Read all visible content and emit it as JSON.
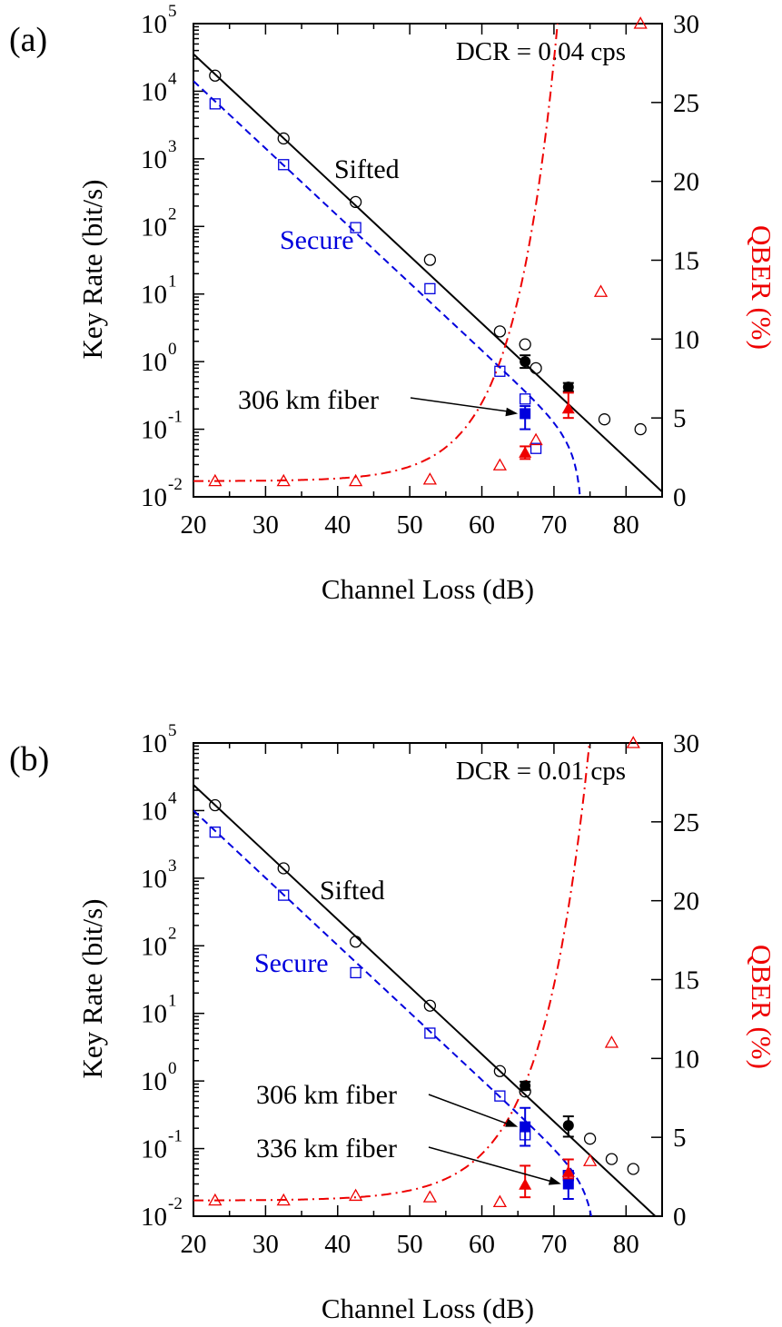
{
  "chart_data": [
    {
      "type": "scatter",
      "panel_label": "(a)",
      "annotation": "DCR = 0.04 cps",
      "xlabel": "Channel Loss (dB)",
      "ylabel_left": "Key Rate (bit/s)",
      "ylabel_right": "QBER (%)",
      "xlim": [
        20,
        85
      ],
      "ylim_left": [
        0.01,
        100000
      ],
      "yscale_left": "log",
      "ylim_right": [
        0,
        30
      ],
      "x_ticks": [
        20,
        30,
        40,
        50,
        60,
        70,
        80
      ],
      "y_left_tick_bases": [
        "10",
        "10",
        "10",
        "10",
        "10",
        "10",
        "10",
        "10"
      ],
      "y_left_tick_exps": [
        "-2",
        "-1",
        "0",
        "1",
        "2",
        "3",
        "4",
        "5"
      ],
      "y_right_ticks": [
        0,
        5,
        10,
        15,
        20,
        25,
        30
      ],
      "series_labels": {
        "sifted": "Sifted",
        "secure": "Secure"
      },
      "fiber_labels": [
        {
          "text": "306 km fiber",
          "x": 66,
          "y": 0.17
        }
      ],
      "colors": {
        "sifted": "#000000",
        "secure": "#0000dd",
        "qber": "#ee0000"
      },
      "sifted_points": [
        {
          "x": 23,
          "y": 17000
        },
        {
          "x": 32.5,
          "y": 2000
        },
        {
          "x": 42.5,
          "y": 230
        },
        {
          "x": 52.8,
          "y": 32
        },
        {
          "x": 62.5,
          "y": 2.8
        },
        {
          "x": 66,
          "y": 1.8
        },
        {
          "x": 67.5,
          "y": 0.8
        },
        {
          "x": 77,
          "y": 0.14
        },
        {
          "x": 82,
          "y": 0.1
        }
      ],
      "sifted_fiber_points": [
        {
          "x": 66,
          "y": 1.0,
          "err": 0.08
        },
        {
          "x": 72,
          "y": 0.42,
          "err": 0.05
        }
      ],
      "secure_points": [
        {
          "x": 23,
          "y": 6500
        },
        {
          "x": 32.5,
          "y": 820
        },
        {
          "x": 42.5,
          "y": 96
        },
        {
          "x": 52.8,
          "y": 12
        },
        {
          "x": 62.5,
          "y": 0.72
        },
        {
          "x": 66,
          "y": 0.28
        },
        {
          "x": 67.5,
          "y": 0.052
        }
      ],
      "secure_fiber_points": [
        {
          "x": 66,
          "y": 0.17,
          "lo": 0.1,
          "hi": 0.22
        }
      ],
      "qber_points": [
        {
          "x": 23,
          "y": 1.0
        },
        {
          "x": 32.5,
          "y": 1.0
        },
        {
          "x": 42.5,
          "y": 1.0
        },
        {
          "x": 52.8,
          "y": 1.1
        },
        {
          "x": 62.5,
          "y": 2.0
        },
        {
          "x": 67.5,
          "y": 3.6
        },
        {
          "x": 76.5,
          "y": 13
        },
        {
          "x": 82,
          "y": 30
        }
      ],
      "qber_fiber_points": [
        {
          "x": 66,
          "y": 2.8,
          "lo": 2.4,
          "hi": 3.2
        },
        {
          "x": 72,
          "y": 5.6,
          "lo": 5.0,
          "hi": 6.6
        }
      ],
      "sifted_line": {
        "x0": 20,
        "log_y0": 4.55,
        "slope": -0.0996
      },
      "secure_line": {
        "x0": 20,
        "log_y0": 4.15,
        "slope": -0.0996
      },
      "secure_cutoff": 74,
      "qber_curve": {
        "base": 1.0,
        "amp": 0.006,
        "rate": 0.168,
        "x_ref": 20
      }
    },
    {
      "type": "scatter",
      "panel_label": "(b)",
      "annotation": "DCR = 0.01 cps",
      "xlabel": "Channel Loss (dB)",
      "ylabel_left": "Key Rate (bit/s)",
      "ylabel_right": "QBER (%)",
      "xlim": [
        20,
        85
      ],
      "ylim_left": [
        0.01,
        100000
      ],
      "yscale_left": "log",
      "ylim_right": [
        0,
        30
      ],
      "x_ticks": [
        20,
        30,
        40,
        50,
        60,
        70,
        80
      ],
      "y_left_tick_bases": [
        "10",
        "10",
        "10",
        "10",
        "10",
        "10",
        "10",
        "10"
      ],
      "y_left_tick_exps": [
        "-2",
        "-1",
        "0",
        "1",
        "2",
        "3",
        "4",
        "5"
      ],
      "y_right_ticks": [
        0,
        5,
        10,
        15,
        20,
        25,
        30
      ],
      "series_labels": {
        "sifted": "Sifted",
        "secure": "Secure"
      },
      "fiber_labels": [
        {
          "text": "306 km fiber",
          "x": 66,
          "y": 0.21
        },
        {
          "text": "336 km fiber",
          "x": 72,
          "y": 0.03
        }
      ],
      "colors": {
        "sifted": "#000000",
        "secure": "#0000dd",
        "qber": "#ee0000"
      },
      "sifted_points": [
        {
          "x": 23,
          "y": 12000
        },
        {
          "x": 32.5,
          "y": 1400
        },
        {
          "x": 42.5,
          "y": 115
        },
        {
          "x": 52.8,
          "y": 13
        },
        {
          "x": 62.5,
          "y": 1.4
        },
        {
          "x": 66,
          "y": 0.7
        },
        {
          "x": 75,
          "y": 0.14
        },
        {
          "x": 78,
          "y": 0.07
        },
        {
          "x": 81,
          "y": 0.05
        }
      ],
      "sifted_fiber_points": [
        {
          "x": 66,
          "y": 0.85,
          "err": 0.05
        },
        {
          "x": 72,
          "y": 0.22,
          "lo": 0.15,
          "hi": 0.3
        }
      ],
      "secure_points": [
        {
          "x": 23,
          "y": 4800
        },
        {
          "x": 32.5,
          "y": 560
        },
        {
          "x": 42.5,
          "y": 40
        },
        {
          "x": 52.8,
          "y": 5.1
        },
        {
          "x": 62.5,
          "y": 0.6
        },
        {
          "x": 66,
          "y": 0.16
        },
        {
          "x": 72,
          "y": 0.04
        }
      ],
      "secure_fiber_points": [
        {
          "x": 66,
          "y": 0.21,
          "lo": 0.11,
          "hi": 0.4
        },
        {
          "x": 72,
          "y": 0.03,
          "lo": 0.018,
          "hi": 0.045
        }
      ],
      "qber_points": [
        {
          "x": 23,
          "y": 1.0
        },
        {
          "x": 32.5,
          "y": 1.0
        },
        {
          "x": 42.5,
          "y": 1.3
        },
        {
          "x": 52.8,
          "y": 1.2
        },
        {
          "x": 62.5,
          "y": 0.9
        },
        {
          "x": 75,
          "y": 3.5
        },
        {
          "x": 78,
          "y": 11
        },
        {
          "x": 81,
          "y": 30
        }
      ],
      "qber_fiber_points": [
        {
          "x": 66,
          "y": 2.0,
          "lo": 1.2,
          "hi": 3.2
        },
        {
          "x": 72,
          "y": 2.8,
          "lo": 2.4,
          "hi": 3.6
        }
      ],
      "sifted_line": {
        "x0": 20,
        "log_y0": 4.38,
        "slope": -0.0996
      },
      "secure_line": {
        "x0": 20,
        "log_y0": 4.0,
        "slope": -0.0996
      },
      "secure_cutoff": 76,
      "qber_curve": {
        "base": 1.0,
        "amp": 0.0065,
        "rate": 0.153,
        "x_ref": 20
      }
    }
  ]
}
